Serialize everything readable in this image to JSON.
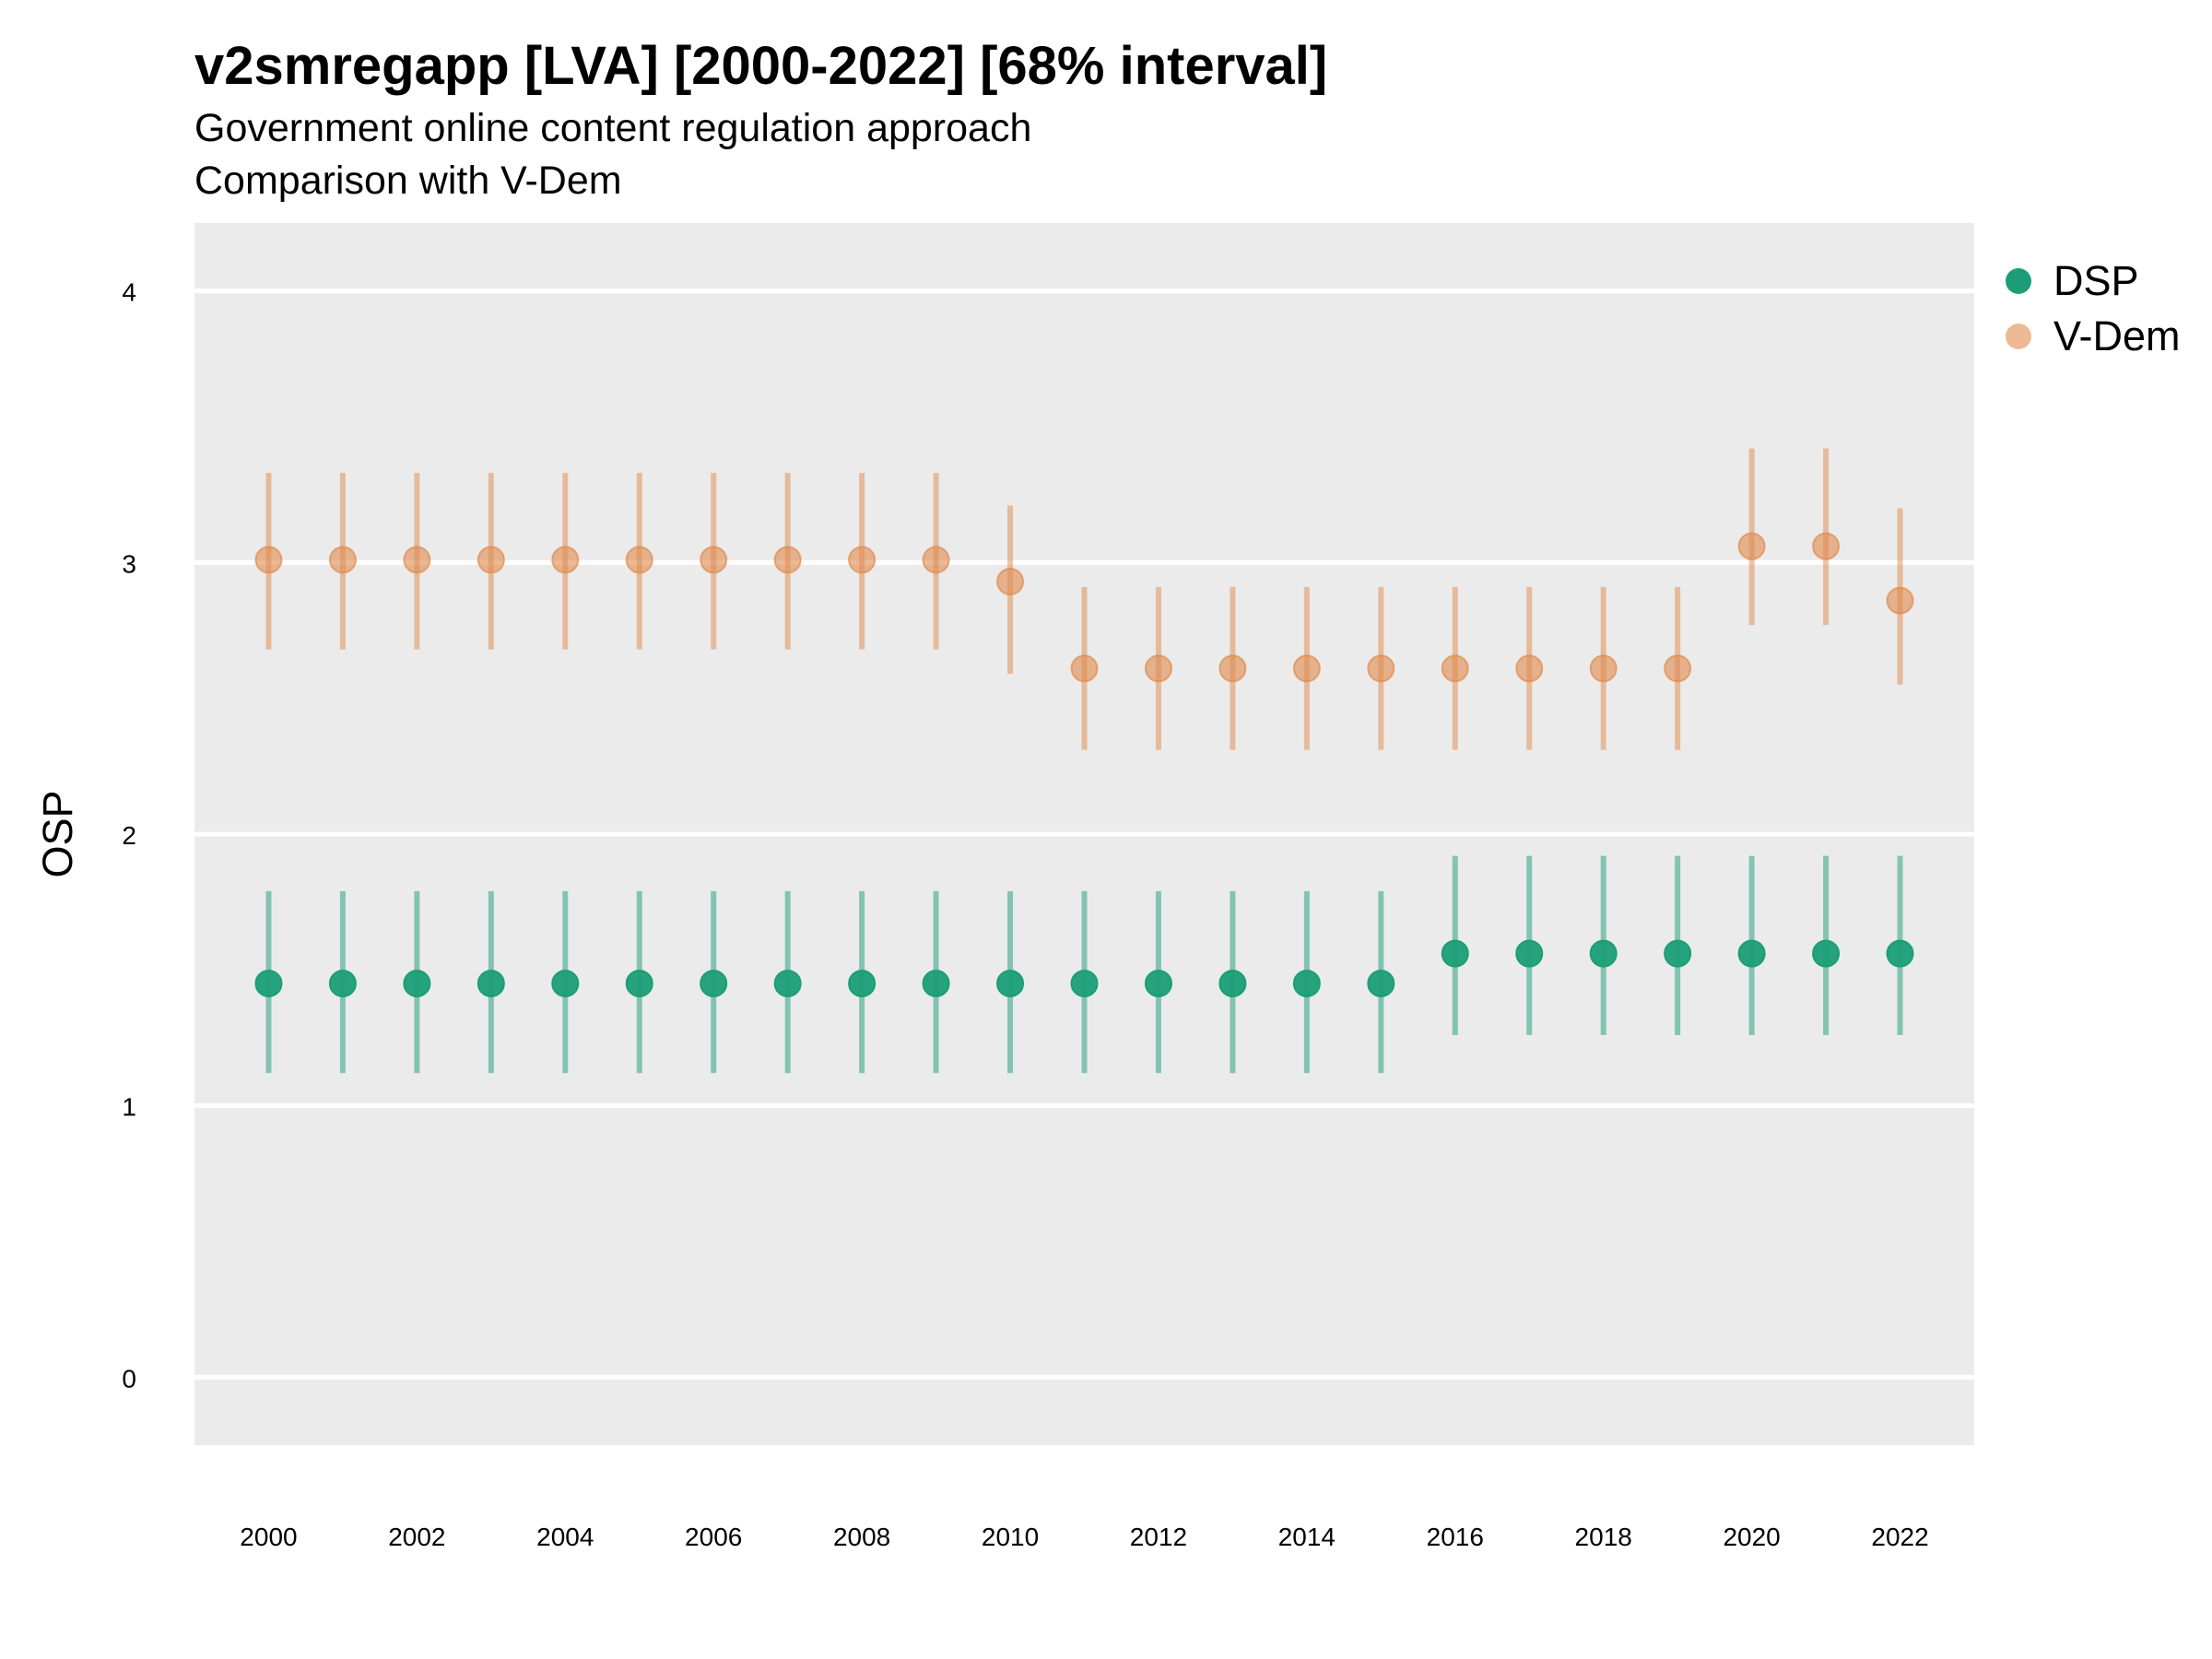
{
  "title": "v2smregapp [LVA] [2000-2022] [68% interval]",
  "subtitle_line1": "Government online content regulation approach",
  "subtitle_line2": "Comparison with V-Dem",
  "colors": {
    "DSP": "#1b9e77",
    "V-Dem": "#e08a4c",
    "panel": "#ebebeb",
    "grid": "#ffffff"
  },
  "chart_data": {
    "type": "scatter",
    "ylabel": "OSP",
    "xlabel": "",
    "ylim": [
      -0.25,
      4.25
    ],
    "yticks": [
      0,
      1,
      2,
      3,
      4
    ],
    "xlim": [
      1999,
      2023
    ],
    "xticks": [
      2000,
      2002,
      2004,
      2006,
      2008,
      2010,
      2012,
      2014,
      2016,
      2018,
      2020,
      2022
    ],
    "grid": true,
    "legend_position": "right",
    "x": [
      2000,
      2001,
      2002,
      2003,
      2004,
      2005,
      2006,
      2007,
      2008,
      2009,
      2010,
      2011,
      2012,
      2013,
      2014,
      2015,
      2016,
      2017,
      2018,
      2019,
      2020,
      2021,
      2022
    ],
    "series": [
      {
        "name": "DSP",
        "values": [
          1.45,
          1.45,
          1.45,
          1.45,
          1.45,
          1.45,
          1.45,
          1.45,
          1.45,
          1.45,
          1.45,
          1.45,
          1.45,
          1.45,
          1.45,
          1.45,
          1.56,
          1.56,
          1.56,
          1.56,
          1.56,
          1.56,
          1.56
        ],
        "lower": [
          1.12,
          1.12,
          1.12,
          1.12,
          1.12,
          1.12,
          1.12,
          1.12,
          1.12,
          1.12,
          1.12,
          1.12,
          1.12,
          1.12,
          1.12,
          1.12,
          1.26,
          1.26,
          1.26,
          1.26,
          1.26,
          1.26,
          1.26
        ],
        "upper": [
          1.79,
          1.79,
          1.79,
          1.79,
          1.79,
          1.79,
          1.79,
          1.79,
          1.79,
          1.79,
          1.79,
          1.79,
          1.79,
          1.79,
          1.79,
          1.79,
          1.92,
          1.92,
          1.92,
          1.92,
          1.92,
          1.92,
          1.92
        ]
      },
      {
        "name": "V-Dem",
        "values": [
          3.01,
          3.01,
          3.01,
          3.01,
          3.01,
          3.01,
          3.01,
          3.01,
          3.01,
          3.01,
          2.93,
          2.61,
          2.61,
          2.61,
          2.61,
          2.61,
          2.61,
          2.61,
          2.61,
          2.61,
          3.06,
          3.06,
          2.86
        ],
        "lower": [
          2.68,
          2.68,
          2.68,
          2.68,
          2.68,
          2.68,
          2.68,
          2.68,
          2.68,
          2.68,
          2.59,
          2.31,
          2.31,
          2.31,
          2.31,
          2.31,
          2.31,
          2.31,
          2.31,
          2.31,
          2.77,
          2.77,
          2.55
        ],
        "upper": [
          3.33,
          3.33,
          3.33,
          3.33,
          3.33,
          3.33,
          3.33,
          3.33,
          3.33,
          3.33,
          3.21,
          2.91,
          2.91,
          2.91,
          2.91,
          2.91,
          2.91,
          2.91,
          2.91,
          2.91,
          3.42,
          3.42,
          3.2
        ]
      }
    ]
  }
}
